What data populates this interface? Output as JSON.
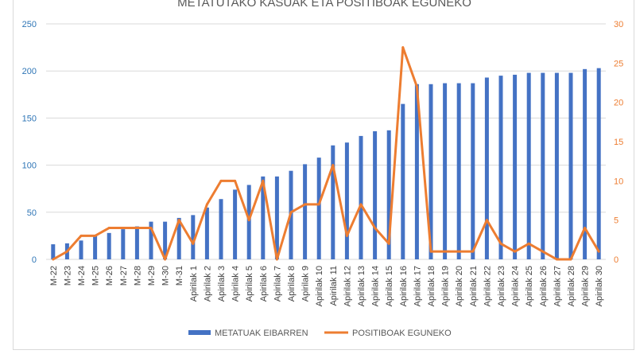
{
  "chart_data": {
    "type": "bar+line",
    "title": "METATUTAKO KASUAK ETA POSITIBOAK EGUNEKO",
    "categories": [
      "M-22",
      "M-23",
      "M-24",
      "M-25",
      "M-26",
      "M-27",
      "M-28",
      "M-29",
      "M-30",
      "M-31",
      "Apirilak 1",
      "Apirilak 2",
      "Apirilak 3",
      "Apirilak 4",
      "Apirilak 5",
      "Apirilak 6",
      "Apirilak 7",
      "Apirilak 8",
      "Apirilak 9",
      "Apirilak 10",
      "Apirilak 11",
      "Apirilak 12",
      "Apirilak 13",
      "Apirilak 14",
      "Apirilak 15",
      "Apirilak 16",
      "Apirilak 17",
      "Apirilak 18",
      "Apirilak 19",
      "Apirilak 20",
      "Apirilak 21",
      "Apirilak 22",
      "Apirilak 23",
      "Apirilak 24",
      "Apirilak 25",
      "Apirilak 26",
      "Apirilak 27",
      "Apirilak 28",
      "Apirilak 29",
      "Apirilak 30"
    ],
    "series": [
      {
        "name": "METATUAK EIBARREN",
        "kind": "bar",
        "axis": "left",
        "color": "#4472c4",
        "values": [
          16,
          17,
          20,
          25,
          28,
          32,
          35,
          40,
          40,
          44,
          47,
          55,
          64,
          74,
          79,
          88,
          88,
          94,
          101,
          108,
          121,
          124,
          131,
          136,
          137,
          165,
          186,
          186,
          187,
          187,
          187,
          193,
          195,
          196,
          198,
          198,
          198,
          198,
          202,
          203
        ]
      },
      {
        "name": "POSITIBOAK EGUNEKO",
        "kind": "line",
        "axis": "right",
        "color": "#ed7d31",
        "values": [
          0,
          1,
          3,
          3,
          4,
          4,
          4,
          4,
          0,
          5,
          2,
          7,
          10,
          10,
          5,
          10,
          0,
          6,
          7,
          7,
          12,
          3,
          7,
          4,
          2,
          27,
          22,
          1,
          1,
          1,
          1,
          5,
          2,
          1,
          2,
          1,
          0,
          0,
          4,
          1
        ]
      }
    ],
    "y_left": {
      "min": 0,
      "max": 250,
      "ticks": [
        "0",
        "50",
        "100",
        "150",
        "200",
        "250"
      ],
      "color": "#2e75b6"
    },
    "y_right": {
      "min": 0,
      "max": 30,
      "ticks": [
        "0",
        "5",
        "10",
        "15",
        "20",
        "25",
        "30"
      ],
      "color": "#ed7d31"
    },
    "legend": {
      "position": "bottom",
      "items": [
        "METATUAK EIBARREN",
        "POSITIBOAK EGUNEKO"
      ]
    }
  }
}
